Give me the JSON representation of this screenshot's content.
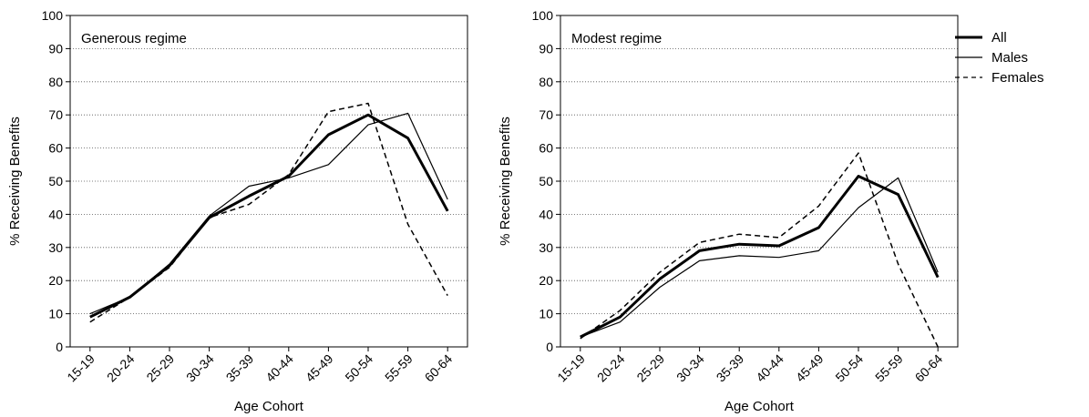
{
  "chart_data": [
    {
      "type": "line",
      "title": "Generous regime",
      "xlabel": "Age Cohort",
      "ylabel": "% Receiving Benefits",
      "ylim": [
        0,
        100
      ],
      "yticks": [
        "0",
        "10",
        "20",
        "30",
        "40",
        "50",
        "60",
        "70",
        "80",
        "90",
        "100"
      ],
      "grid": "horizontal dotted",
      "categories": [
        "15-19",
        "20-24",
        "25-29",
        "30-34",
        "35-39",
        "40-44",
        "45-49",
        "50-54",
        "55-59",
        "60-64"
      ],
      "series": [
        {
          "name": "All",
          "style": "thick",
          "values": [
            9,
            15,
            24.5,
            39,
            45.5,
            51.5,
            64,
            70,
            63,
            41
          ]
        },
        {
          "name": "Males",
          "style": "thin",
          "values": [
            10,
            15,
            25,
            39.5,
            48.5,
            51,
            55,
            67,
            70.5,
            44.5
          ]
        },
        {
          "name": "Females",
          "style": "dashed",
          "values": [
            7.5,
            15,
            24,
            39,
            43,
            52,
            71,
            73.5,
            37,
            15.5
          ]
        }
      ]
    },
    {
      "type": "line",
      "title": "Modest regime",
      "xlabel": "Age Cohort",
      "ylabel": "% Receiving Benefits",
      "ylim": [
        0,
        100
      ],
      "yticks": [
        "0",
        "10",
        "20",
        "30",
        "40",
        "50",
        "60",
        "70",
        "80",
        "90",
        "100"
      ],
      "grid": "horizontal dotted",
      "categories": [
        "15-19",
        "20-24",
        "25-29",
        "30-34",
        "35-39",
        "40-44",
        "45-49",
        "50-54",
        "55-59",
        "60-64"
      ],
      "series": [
        {
          "name": "All",
          "style": "thick",
          "values": [
            3,
            9,
            20.5,
            29,
            31,
            30.5,
            36,
            51.5,
            46,
            21
          ]
        },
        {
          "name": "Males",
          "style": "thin",
          "values": [
            3,
            7.5,
            18,
            26,
            27.5,
            27,
            29,
            42,
            51,
            22.5
          ]
        },
        {
          "name": "Females",
          "style": "dashed",
          "values": [
            2.5,
            11,
            22.5,
            31.5,
            34,
            33,
            42.5,
            58.5,
            25,
            0
          ]
        }
      ]
    }
  ],
  "legend": {
    "placement": "right",
    "items": [
      {
        "label": "All",
        "style": "thick"
      },
      {
        "label": "Males",
        "style": "thin"
      },
      {
        "label": "Females",
        "style": "dashed"
      }
    ]
  }
}
